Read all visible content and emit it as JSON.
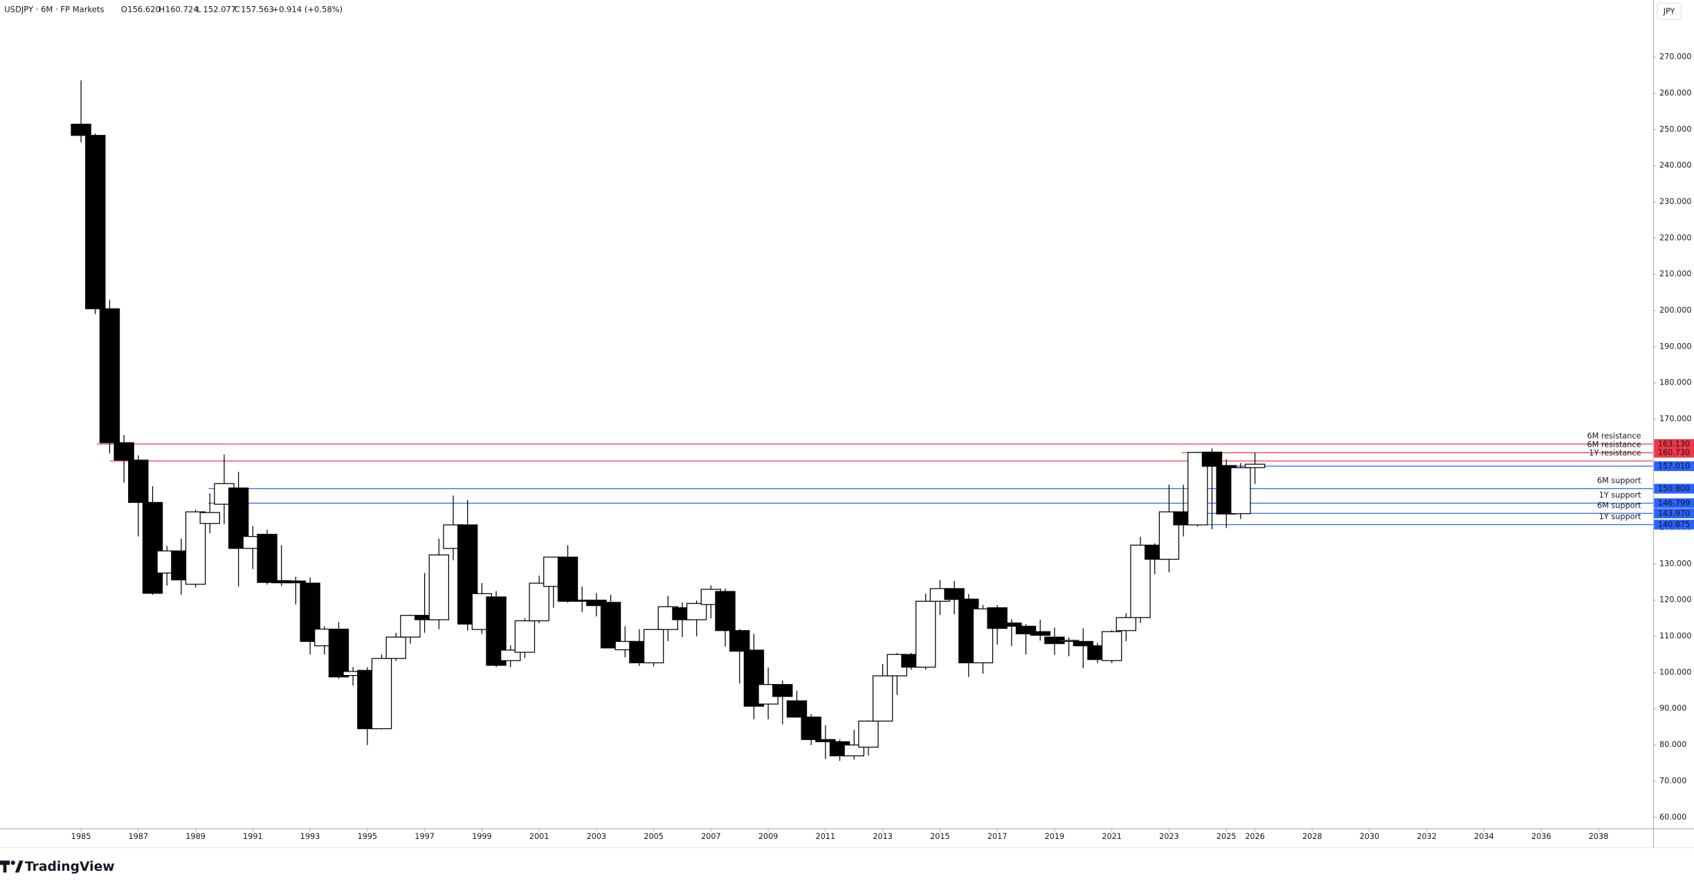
{
  "header": {
    "symbol": "USDJPY · 6M · FP Markets",
    "ohlc": [
      {
        "key": "O",
        "value": "156.620"
      },
      {
        "key": "H",
        "value": "160.724"
      },
      {
        "key": "L",
        "value": "152.077"
      },
      {
        "key": "C",
        "value": "157.563"
      }
    ],
    "change": "+0.914 (+0.58%)",
    "currency": "JPY"
  },
  "logo": "TradingView",
  "chart_data": {
    "type": "candlestick",
    "x": [
      1985,
      1985.5,
      1986,
      1986.5,
      1987,
      1987.5,
      1988,
      1988.5,
      1989,
      1989.5,
      1990,
      1990.5,
      1991,
      1991.5,
      1992,
      1992.5,
      1993,
      1993.5,
      1994,
      1994.5,
      1995,
      1995.5,
      1996,
      1996.5,
      1997,
      1997.5,
      1998,
      1998.5,
      1999,
      1999.5,
      2000,
      2000.5,
      2001,
      2001.5,
      2002,
      2002.5,
      2003,
      2003.5,
      2004,
      2004.5,
      2005,
      2005.5,
      2006,
      2006.5,
      2007,
      2007.5,
      2008,
      2008.5,
      2009,
      2009.5,
      2010,
      2010.5,
      2011,
      2011.5,
      2012,
      2012.5,
      2013,
      2013.5,
      2014,
      2014.5,
      2015,
      2015.5,
      2016,
      2016.5,
      2017,
      2017.5,
      2018,
      2018.5,
      2019,
      2019.5,
      2020,
      2020.5,
      2021,
      2021.5,
      2022,
      2022.5,
      2023,
      2023.5,
      2024,
      2024.5,
      2025,
      2025.5,
      2026
    ],
    "open": [
      251.5,
      248.4,
      200.5,
      163.5,
      158.7,
      147.0,
      127.5,
      133.6,
      124.4,
      141.2,
      146.5,
      151.0,
      134.3,
      138.2,
      125.4,
      125.3,
      124.7,
      107.4,
      112.0,
      99.2,
      100.6,
      84.5,
      103.9,
      109.8,
      115.8,
      114.6,
      134.3,
      140.8,
      111.9,
      120.9,
      103.3,
      105.6,
      114.3,
      123.8,
      131.9,
      120.0,
      120.0,
      119.4,
      106.3,
      108.6,
      102.7,
      111.9,
      117.9,
      114.6,
      118.8,
      122.4,
      111.6,
      106.2,
      91.3,
      96.7,
      92.2,
      87.7,
      81.5,
      80.9,
      77.0,
      79.4,
      86.6,
      99.1,
      105.0,
      101.5,
      119.7,
      123.2,
      120.3,
      102.7,
      117.9,
      113.7,
      112.8,
      111.3,
      109.8,
      108.6,
      108.6,
      107.4,
      103.3,
      111.6,
      115.2,
      135.2,
      131.3,
      144.4,
      140.8,
      160.9,
      157.2,
      143.9,
      156.62
    ],
    "high": [
      263.6,
      248.9,
      203.0,
      165.6,
      160.0,
      151.5,
      135.0,
      137.0,
      145.0,
      149.5,
      160.2,
      155.5,
      140.5,
      139.5,
      135.2,
      126.5,
      126.3,
      112.8,
      114.0,
      101.5,
      101.5,
      105.0,
      111.0,
      116.0,
      127.5,
      137.0,
      148.9,
      147.7,
      124.7,
      122.5,
      107.5,
      115.0,
      126.8,
      132.0,
      135.2,
      123.8,
      122.0,
      121.5,
      112.8,
      112.0,
      111.5,
      121.2,
      119.4,
      119.9,
      124.1,
      123.2,
      112.0,
      110.7,
      101.4,
      97.8,
      95.0,
      88.5,
      85.5,
      81.5,
      84.2,
      86.8,
      102.4,
      105.4,
      105.4,
      121.8,
      125.6,
      125.3,
      121.7,
      118.7,
      118.6,
      114.7,
      113.4,
      114.6,
      112.4,
      109.7,
      112.2,
      108.2,
      111.7,
      116.4,
      137.5,
      135.7,
      151.9,
      151.9,
      161.0,
      161.9,
      158.9,
      157.9,
      160.724
    ],
    "low": [
      246.5,
      199.0,
      160.5,
      152.5,
      137.6,
      121.5,
      124.0,
      121.5,
      123.5,
      138.5,
      141.0,
      123.8,
      128.6,
      124.3,
      123.9,
      118.8,
      105.0,
      105.0,
      98.3,
      96.4,
      80.0,
      84.3,
      103.2,
      108.0,
      111.0,
      112.0,
      131.0,
      111.6,
      110.7,
      101.5,
      101.5,
      104.0,
      113.6,
      117.9,
      119.3,
      116.7,
      115.5,
      106.8,
      104.2,
      101.8,
      101.7,
      108.7,
      109.8,
      110.0,
      115.0,
      107.2,
      97.0,
      87.1,
      87.1,
      85.7,
      87.9,
      80.0,
      76.1,
      75.6,
      76.0,
      77.1,
      86.5,
      93.8,
      100.8,
      100.8,
      115.9,
      116.1,
      98.8,
      99.7,
      107.7,
      107.3,
      105.0,
      108.8,
      104.9,
      104.5,
      101.2,
      102.6,
      102.6,
      108.7,
      113.7,
      127.2,
      127.7,
      137.6,
      140.3,
      139.6,
      139.9,
      142.4,
      152.077
    ],
    "close": [
      248.4,
      200.5,
      163.5,
      158.7,
      147.0,
      121.9,
      133.6,
      125.6,
      144.4,
      144.2,
      152.2,
      134.3,
      137.6,
      124.9,
      124.8,
      124.8,
      108.6,
      112.0,
      98.8,
      100.3,
      84.5,
      103.9,
      109.8,
      115.8,
      114.6,
      132.5,
      140.8,
      113.4,
      121.8,
      102.0,
      106.2,
      114.3,
      124.7,
      131.9,
      119.7,
      119.7,
      118.5,
      106.8,
      108.6,
      102.7,
      111.9,
      118.2,
      114.6,
      119.1,
      123.0,
      111.6,
      105.9,
      90.7,
      96.7,
      93.4,
      87.7,
      81.5,
      80.9,
      77.0,
      80.0,
      86.6,
      99.1,
      105.0,
      101.5,
      119.7,
      123.2,
      120.2,
      102.7,
      117.6,
      112.2,
      112.8,
      110.7,
      110.3,
      108.0,
      108.9,
      107.4,
      103.6,
      111.3,
      115.2,
      135.2,
      131.3,
      144.4,
      140.8,
      160.8,
      157.0,
      143.8,
      156.6,
      157.563
    ],
    "up_color": "#ffffff",
    "down_color": "#000000",
    "wick_color": "#000000",
    "levels": [
      {
        "name": "6M resistance",
        "value": 163.13,
        "label": "163.130",
        "color": "#f23645"
      },
      {
        "name": "6M resistance",
        "value": 160.73,
        "label": "160.730",
        "color": "#f23645"
      },
      {
        "name": "1Y resistance",
        "value": 158.45,
        "color": "#f23645"
      },
      {
        "value": 157.01,
        "label": "157.010",
        "color": "#2962ff"
      },
      {
        "name": "6M support",
        "value": 150.8,
        "label": "150.800",
        "color": "#2962ff"
      },
      {
        "name": "1Y support",
        "value": 146.799,
        "label": "146.799",
        "color": "#2962ff"
      },
      {
        "name": "6M support",
        "value": 143.97,
        "label": "143.970",
        "color": "#2962ff"
      },
      {
        "name": "1Y support",
        "value": 140.875,
        "label": "140.875",
        "color": "#2962ff"
      }
    ],
    "xlim": [
      1982.17,
      2039.9
    ],
    "ylim": [
      57.0,
      285.8
    ],
    "xticks": [
      1985,
      1987,
      1989,
      1991,
      1993,
      1995,
      1997,
      1999,
      2001,
      2003,
      2005,
      2007,
      2009,
      2011,
      2013,
      2015,
      2017,
      2019,
      2021,
      2023,
      2025,
      2026,
      2028,
      2030,
      2032,
      2034,
      2036,
      2038
    ],
    "yticks": [
      {
        "value": 60,
        "label": "60.000"
      },
      {
        "value": 70,
        "label": "70.000"
      },
      {
        "value": 80,
        "label": "80.000"
      },
      {
        "value": 90,
        "label": "90.000"
      },
      {
        "value": 100,
        "label": "100.000"
      },
      {
        "value": 110,
        "label": "110.000"
      },
      {
        "value": 120,
        "label": "120.000"
      },
      {
        "value": 130,
        "label": "130.000"
      },
      {
        "value": 140,
        "label": "140.000"
      },
      {
        "value": 150,
        "label": "150.000"
      },
      {
        "value": 160,
        "label": "160.000"
      },
      {
        "value": 170,
        "label": "170.000"
      },
      {
        "value": 180,
        "label": "180.000"
      },
      {
        "value": 190,
        "label": "190.000"
      },
      {
        "value": 200,
        "label": "200.000"
      },
      {
        "value": 210,
        "label": "210.000"
      },
      {
        "value": 220,
        "label": "220.000"
      },
      {
        "value": 230,
        "label": "230.000"
      },
      {
        "value": 240,
        "label": "240.000"
      },
      {
        "value": 250,
        "label": "250.000"
      },
      {
        "value": 260,
        "label": "260.000"
      },
      {
        "value": 270,
        "label": "270.000"
      }
    ]
  }
}
